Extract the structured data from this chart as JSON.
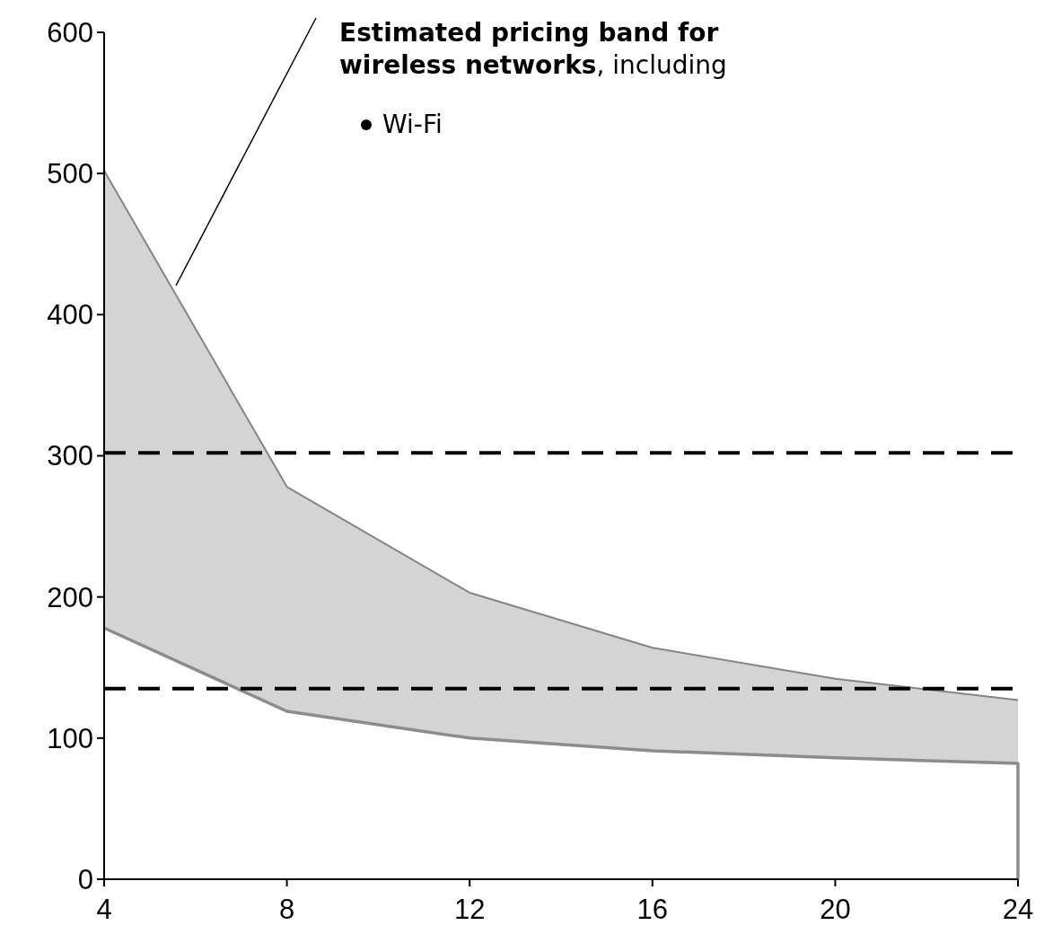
{
  "chart_data": {
    "type": "line",
    "x": [
      4,
      8,
      12,
      16,
      20,
      24
    ],
    "xlim": [
      4,
      24
    ],
    "xticks": [
      4,
      8,
      12,
      16,
      20,
      24
    ],
    "ylim": [
      0,
      600
    ],
    "yticks": [
      0,
      100,
      200,
      300,
      400,
      500,
      600
    ],
    "grid": false,
    "series": [
      {
        "color": "#858585",
        "values": [
          502,
          278,
          203,
          164,
          142,
          127
        ],
        "lower": [
          178,
          119,
          100,
          91,
          86,
          82
        ],
        "upper": [
          502,
          278,
          203,
          164,
          142,
          127
        ]
      },
      {
        "color": "#8c8c8c",
        "x": [
          4,
          8,
          12,
          16,
          20,
          24,
          24
        ],
        "values": [
          178,
          119,
          100,
          91,
          86,
          82,
          0
        ]
      }
    ],
    "ref_lines": [
      {
        "axis": "y",
        "value": 302,
        "color": "#000000",
        "line_style": "dashed"
      },
      {
        "axis": "y",
        "value": 135,
        "color": "#000000",
        "line_style": "dashed"
      }
    ],
    "annotations": [
      "Estimated pricing band for wireless networks",
      ", including",
      "Wi-Fi"
    ]
  }
}
